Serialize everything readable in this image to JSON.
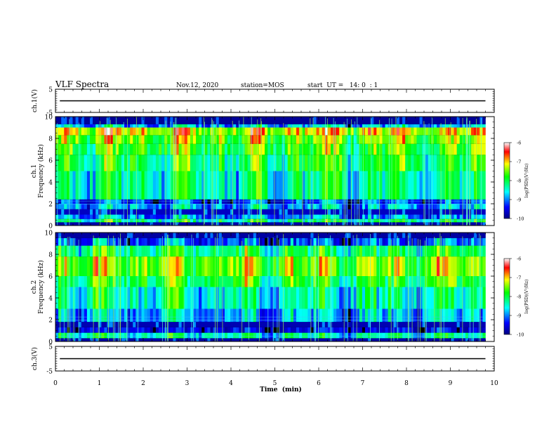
{
  "chart_data": {
    "type": "heatmap",
    "header": {
      "title": "VLF Spectra",
      "date": "Nov.12, 2020",
      "station": "station=MOS",
      "start": "start  UT =   14: 0  : 1"
    },
    "xlabel": "Time  (min)",
    "xlim": [
      0,
      10
    ],
    "xticks": [
      "0",
      "1",
      "2",
      "3",
      "4",
      "5",
      "6",
      "7",
      "8",
      "9",
      "10"
    ],
    "panels": [
      {
        "id": "ch1-waveform",
        "kind": "line",
        "ylabel": "ch.1(V)",
        "ylim": [
          -5,
          5
        ],
        "yticks": [
          "5",
          "-5"
        ],
        "level": 0
      },
      {
        "id": "ch1-spectrogram",
        "kind": "heatmap",
        "ylabel_top": "ch.1",
        "ylabel": "Frequency  (kHz)",
        "ylim": [
          0,
          10
        ],
        "yticks": [
          "0",
          "2",
          "4",
          "6",
          "8",
          "10"
        ],
        "bands_khz": [
          {
            "f0": 0.0,
            "f1": 0.3,
            "level": 0.05
          },
          {
            "f0": 0.3,
            "f1": 0.6,
            "level": 0.45
          },
          {
            "f0": 0.6,
            "f1": 1.0,
            "level": 0.25
          },
          {
            "f0": 1.0,
            "f1": 1.5,
            "level": 0.08
          },
          {
            "f0": 1.5,
            "f1": 2.0,
            "level": 0.28
          },
          {
            "f0": 2.0,
            "f1": 2.4,
            "level": 0.18
          },
          {
            "f0": 2.4,
            "f1": 5.0,
            "level": 0.42
          },
          {
            "f0": 5.0,
            "f1": 6.5,
            "level": 0.5
          },
          {
            "f0": 6.5,
            "f1": 7.5,
            "level": 0.56
          },
          {
            "f0": 7.5,
            "f1": 8.3,
            "level": 0.62
          },
          {
            "f0": 8.3,
            "f1": 9.0,
            "level": 0.72
          },
          {
            "f0": 9.0,
            "f1": 9.3,
            "level": 0.3
          },
          {
            "f0": 9.3,
            "f1": 10.0,
            "level": 0.03
          }
        ]
      },
      {
        "id": "ch2-spectrogram",
        "kind": "heatmap",
        "ylabel_top": "ch.2",
        "ylabel": "Frequency  (kHz)",
        "ylim": [
          0,
          10
        ],
        "yticks": [
          "0",
          "2",
          "4",
          "6",
          "8",
          "10"
        ],
        "bands_khz": [
          {
            "f0": 0.0,
            "f1": 0.3,
            "level": 0.05
          },
          {
            "f0": 0.3,
            "f1": 0.8,
            "level": 0.4
          },
          {
            "f0": 0.8,
            "f1": 1.3,
            "level": 0.12
          },
          {
            "f0": 1.3,
            "f1": 1.8,
            "level": 0.06
          },
          {
            "f0": 1.8,
            "f1": 3.0,
            "level": 0.3
          },
          {
            "f0": 3.0,
            "f1": 5.0,
            "level": 0.4
          },
          {
            "f0": 5.0,
            "f1": 6.0,
            "level": 0.52
          },
          {
            "f0": 6.0,
            "f1": 7.8,
            "level": 0.64
          },
          {
            "f0": 7.8,
            "f1": 8.8,
            "level": 0.48
          },
          {
            "f0": 8.8,
            "f1": 9.5,
            "level": 0.2
          },
          {
            "f0": 9.5,
            "f1": 10.0,
            "level": 0.04
          }
        ]
      },
      {
        "id": "ch3-waveform",
        "kind": "line",
        "ylabel": "ch.3(V)",
        "ylim": [
          -5,
          5
        ],
        "yticks": [
          "5",
          "-5"
        ],
        "level": 0
      }
    ],
    "colorbar": {
      "label": "log(PSD)(V²/Hz)",
      "range": [
        -10,
        -6
      ],
      "ticks": [
        "-6",
        "-7",
        "-8",
        "-9",
        "-10"
      ],
      "colors": [
        "#000080",
        "#0000ff",
        "#00ffff",
        "#00ff00",
        "#ffff00",
        "#ff0000",
        "#ffffff"
      ]
    }
  }
}
